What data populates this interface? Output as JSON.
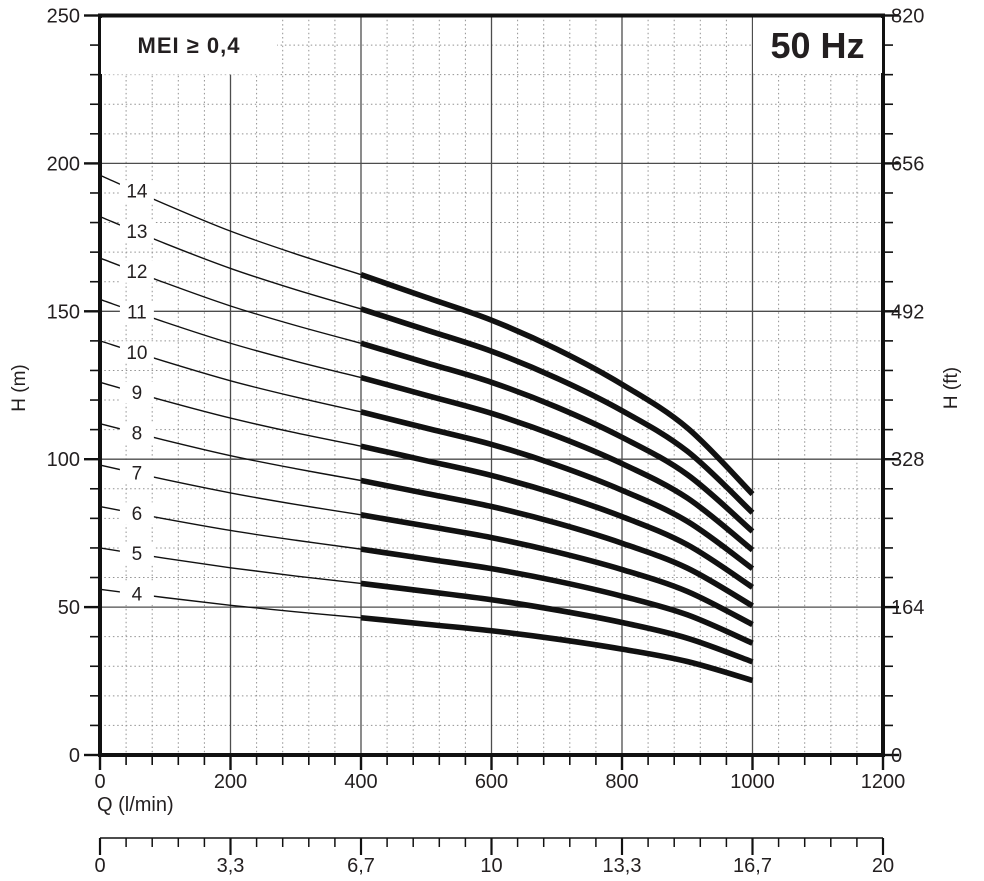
{
  "labels": {
    "mei": "MEI ≥ 0,4",
    "frequency": "50 Hz"
  },
  "axes": {
    "x_primary": {
      "label": "Q (l/min)",
      "min": 0,
      "max": 1200,
      "major_ticks": [
        0,
        200,
        400,
        600,
        800,
        1000,
        1200
      ],
      "tick_labels": [
        "0",
        "200",
        "400",
        "600",
        "800",
        "1000",
        "1200"
      ],
      "minor_step": 40
    },
    "x_secondary": {
      "tick_labels": [
        "0",
        "3,3",
        "6,7",
        "10",
        "13,3",
        "16,7",
        "20"
      ],
      "minor_per_major": 5
    },
    "y_left": {
      "label": "H (m)",
      "min": 0,
      "max": 250,
      "major_ticks": [
        0,
        50,
        100,
        150,
        200,
        250
      ],
      "tick_labels": [
        "0",
        "50",
        "100",
        "150",
        "200",
        "250"
      ],
      "minor_step": 10
    },
    "y_right": {
      "label": "H (ft)",
      "tick_labels": [
        "0",
        "164",
        "328",
        "492",
        "656",
        "820"
      ]
    }
  },
  "chart_data": {
    "type": "line",
    "title": "Pump head vs flow curves per number of stages, 50 Hz",
    "xlabel": "Q (l/min)",
    "ylabel": "H (m)",
    "ylabel_right": "H (ft)",
    "xlim": [
      0,
      1200
    ],
    "ylim": [
      0,
      250
    ],
    "grid": "major solid, minor dotted",
    "legend": "on-curve numbers = number of pump stages",
    "duty_range_lmin": [
      400,
      1000
    ],
    "x": [
      0,
      100,
      200,
      300,
      400,
      500,
      600,
      700,
      800,
      900,
      1000
    ],
    "per_stage_head_m": [
      14.0,
      13.3,
      12.65,
      12.1,
      11.6,
      11.05,
      10.5,
      9.8,
      8.95,
      7.9,
      6.3
    ],
    "series": [
      {
        "name": "4",
        "stages": 4,
        "values": [
          56.0,
          53.2,
          50.6,
          48.4,
          46.4,
          44.2,
          42.0,
          39.2,
          35.8,
          31.6,
          25.2
        ]
      },
      {
        "name": "5",
        "stages": 5,
        "values": [
          70.0,
          66.5,
          63.3,
          60.5,
          58.0,
          55.3,
          52.5,
          49.0,
          44.8,
          39.5,
          31.5
        ]
      },
      {
        "name": "6",
        "stages": 6,
        "values": [
          84.0,
          79.8,
          75.9,
          72.6,
          69.6,
          66.3,
          63.0,
          58.8,
          53.7,
          47.4,
          37.8
        ]
      },
      {
        "name": "7",
        "stages": 7,
        "values": [
          98.0,
          93.1,
          88.6,
          84.7,
          81.2,
          77.4,
          73.5,
          68.6,
          62.7,
          55.3,
          44.1
        ]
      },
      {
        "name": "8",
        "stages": 8,
        "values": [
          112.0,
          106.4,
          101.2,
          96.8,
          92.8,
          88.4,
          84.0,
          78.4,
          71.6,
          63.2,
          50.4
        ]
      },
      {
        "name": "9",
        "stages": 9,
        "values": [
          126.0,
          119.7,
          113.9,
          108.9,
          104.4,
          99.5,
          94.5,
          88.2,
          80.6,
          71.1,
          56.7
        ]
      },
      {
        "name": "10",
        "stages": 10,
        "values": [
          140.0,
          133.0,
          126.5,
          121.0,
          116.0,
          110.5,
          105.0,
          98.0,
          89.5,
          79.0,
          63.0
        ]
      },
      {
        "name": "11",
        "stages": 11,
        "values": [
          154.0,
          146.3,
          139.2,
          133.1,
          127.6,
          121.6,
          115.5,
          107.8,
          98.5,
          86.9,
          69.3
        ]
      },
      {
        "name": "12",
        "stages": 12,
        "values": [
          168.0,
          159.6,
          151.8,
          145.2,
          139.2,
          132.6,
          126.0,
          117.6,
          107.4,
          94.8,
          75.6
        ]
      },
      {
        "name": "13",
        "stages": 13,
        "values": [
          182.0,
          172.9,
          164.5,
          157.3,
          150.8,
          143.7,
          136.5,
          127.4,
          116.4,
          102.7,
          81.9
        ]
      },
      {
        "name": "14",
        "stages": 14,
        "values": [
          196.0,
          186.2,
          177.1,
          169.4,
          162.4,
          154.7,
          147.0,
          137.2,
          125.3,
          110.6,
          88.2
        ]
      }
    ]
  },
  "style": {
    "curve_color": "#111111",
    "grid_major_color": "#4d4d4d",
    "grid_minor_color": "#929292",
    "axis_color": "#111111",
    "text_color": "#231f20"
  }
}
